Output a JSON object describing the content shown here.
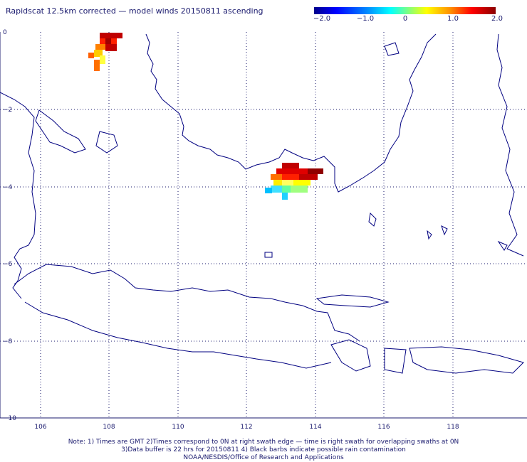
{
  "title": "Rapidscat 12.5km corrected — model winds 20150811 ascending",
  "colorbar": {
    "ticks": [
      "−2.0",
      "−1.0",
      "0",
      "1.0",
      "2.0"
    ],
    "range": [
      -2.0,
      2.0
    ]
  },
  "axes": {
    "lon_ticks": [
      "106",
      "108",
      "110",
      "112",
      "114",
      "116",
      "118"
    ],
    "lat_ticks": [
      "0",
      "−2",
      "−4",
      "−6",
      "−8",
      "−10"
    ],
    "lon_range": [
      105,
      120
    ],
    "lat_range": [
      -10,
      0
    ]
  },
  "colors": {
    "coast": "#000080",
    "grid": "#1a1a6e",
    "text": "#1a1a6e"
  },
  "notes": {
    "line1": "Note: 1) Times are GMT 2)Times correspond to 0N at right swath edge — time is right swath for overlapping swaths at 0N",
    "line2": "3)Data buffer is 22 hrs for 20150811 4) Black barbs indicate possible rain contamination",
    "line3": "NOAA/NESDIS/Office of Research and Applications"
  }
}
